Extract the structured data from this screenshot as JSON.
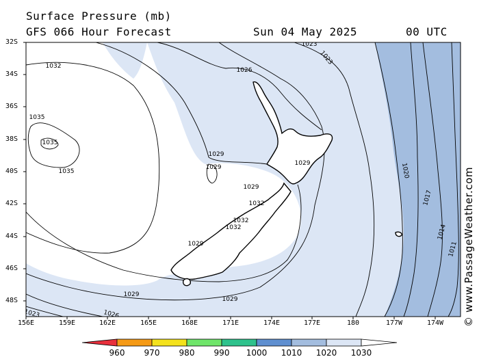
{
  "header": {
    "title": "Surface Pressure (mb)",
    "subtitle": "GFS 066 Hour Forecast",
    "date": "Sun 04 May 2025",
    "time": "00 UTC"
  },
  "map": {
    "latitude_labels": [
      "32S",
      "34S",
      "36S",
      "38S",
      "40S",
      "42S",
      "44S",
      "46S",
      "48S"
    ],
    "longitude_labels": [
      "156E",
      "159E",
      "162E",
      "165E",
      "168E",
      "171E",
      "174E",
      "177E",
      "180",
      "177W",
      "174W"
    ],
    "isobar_labels": [
      "1032",
      "1035",
      "1035",
      "1035",
      "1026",
      "1023",
      "1023",
      "1020",
      "1017",
      "1014",
      "1011",
      "1029",
      "1029",
      "1029",
      "1029",
      "1032",
      "1032",
      "1032",
      "1029",
      "1029",
      "1029",
      "1026",
      "1023"
    ],
    "colors": {
      "land_border": "#000000",
      "band_1020_1030": "#dce6f5",
      "band_1010_1020": "#a3bddf",
      "above_1030": "#ffffff"
    }
  },
  "scale": {
    "labels": [
      "960",
      "970",
      "980",
      "990",
      "1000",
      "1010",
      "1020",
      "1030"
    ],
    "colors": [
      "#e8303c",
      "#f59a16",
      "#f4e21c",
      "#6fe56a",
      "#2ec28c",
      "#5f8fd0",
      "#a3bddf",
      "#dce6f5",
      "#ffffff"
    ]
  },
  "credit": "© www.PassageWeather.com"
}
